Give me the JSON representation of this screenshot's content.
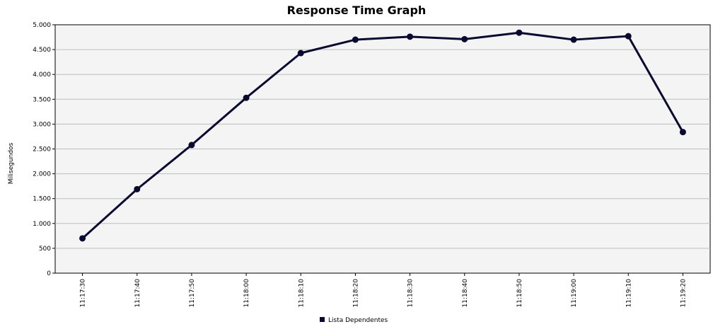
{
  "chart_data": {
    "type": "line",
    "title": "Response Time Graph",
    "xlabel": "",
    "ylabel": "Milisegundos",
    "categories": [
      "11:17:30",
      "11:17:40",
      "11:17:50",
      "11:18:00",
      "11:18:10",
      "11:18:20",
      "11:18:30",
      "11:18:40",
      "11:18:50",
      "11:19:00",
      "11:19:10",
      "11:19:20"
    ],
    "series": [
      {
        "name": "Lista Dependentes",
        "values": [
          700,
          1690,
          2580,
          3530,
          4430,
          4700,
          4760,
          4710,
          4840,
          4700,
          4770,
          2840
        ]
      }
    ],
    "ylim": [
      0,
      5000
    ],
    "yticks": [
      0,
      500,
      1000,
      1500,
      2000,
      2500,
      3000,
      3500,
      4000,
      4500,
      5000
    ],
    "ytick_labels": [
      "0",
      "500",
      "1.000",
      "1.500",
      "2.000",
      "2.500",
      "3.000",
      "3.500",
      "4.000",
      "4.500",
      "5.000"
    ],
    "grid": true,
    "legend_position": "bottom",
    "colors": {
      "series": "#0a0a30",
      "plot_background": "#f4f4f4",
      "grid": "#bdbdbd"
    }
  }
}
